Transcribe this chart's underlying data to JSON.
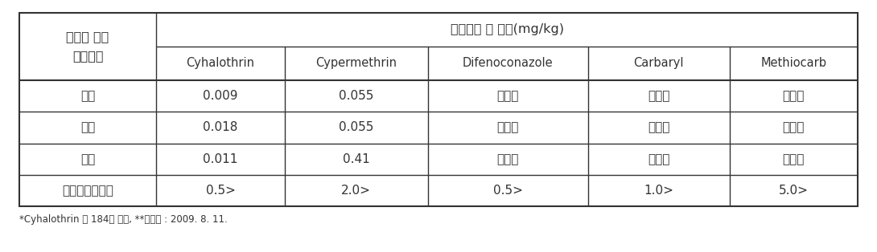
{
  "header_col1": "봉지밑 부분\n막힘정도",
  "header_merged": "검출성분 및 농도(mg/kg)",
  "subheaders": [
    "Cyhalothrin",
    "Cypermethrin",
    "Difenoconazole",
    "Carbaryl",
    "Methiocarb"
  ],
  "rows": [
    [
      "열림",
      "0.009",
      "0.055",
      "불검출",
      "불검출",
      "불검출"
    ],
    [
      "막힘",
      "0.018",
      "0.055",
      "불검출",
      "불검출",
      "불검출"
    ],
    [
      "중간",
      "0.011",
      "0.41",
      "불검출",
      "불검출",
      "불검출"
    ],
    [
      "잔류허용기준치",
      "0.5>",
      "2.0>",
      "0.5>",
      "1.0>",
      "5.0>"
    ]
  ],
  "footnote": "*Cyhalothrin 외 184종 분석, **분석일 : 2009. 8. 11.",
  "bg_color": "#ffffff",
  "border_color": "#333333",
  "text_color": "#333333",
  "col_props": [
    0.158,
    0.148,
    0.165,
    0.185,
    0.163,
    0.148
  ],
  "row_props": [
    0.165,
    0.165,
    0.155,
    0.155,
    0.155,
    0.155
  ],
  "fs_korean_header": 11.5,
  "fs_merged_header": 11.5,
  "fs_subheader": 10.5,
  "fs_data": 11.0,
  "fs_footnote": 8.5
}
